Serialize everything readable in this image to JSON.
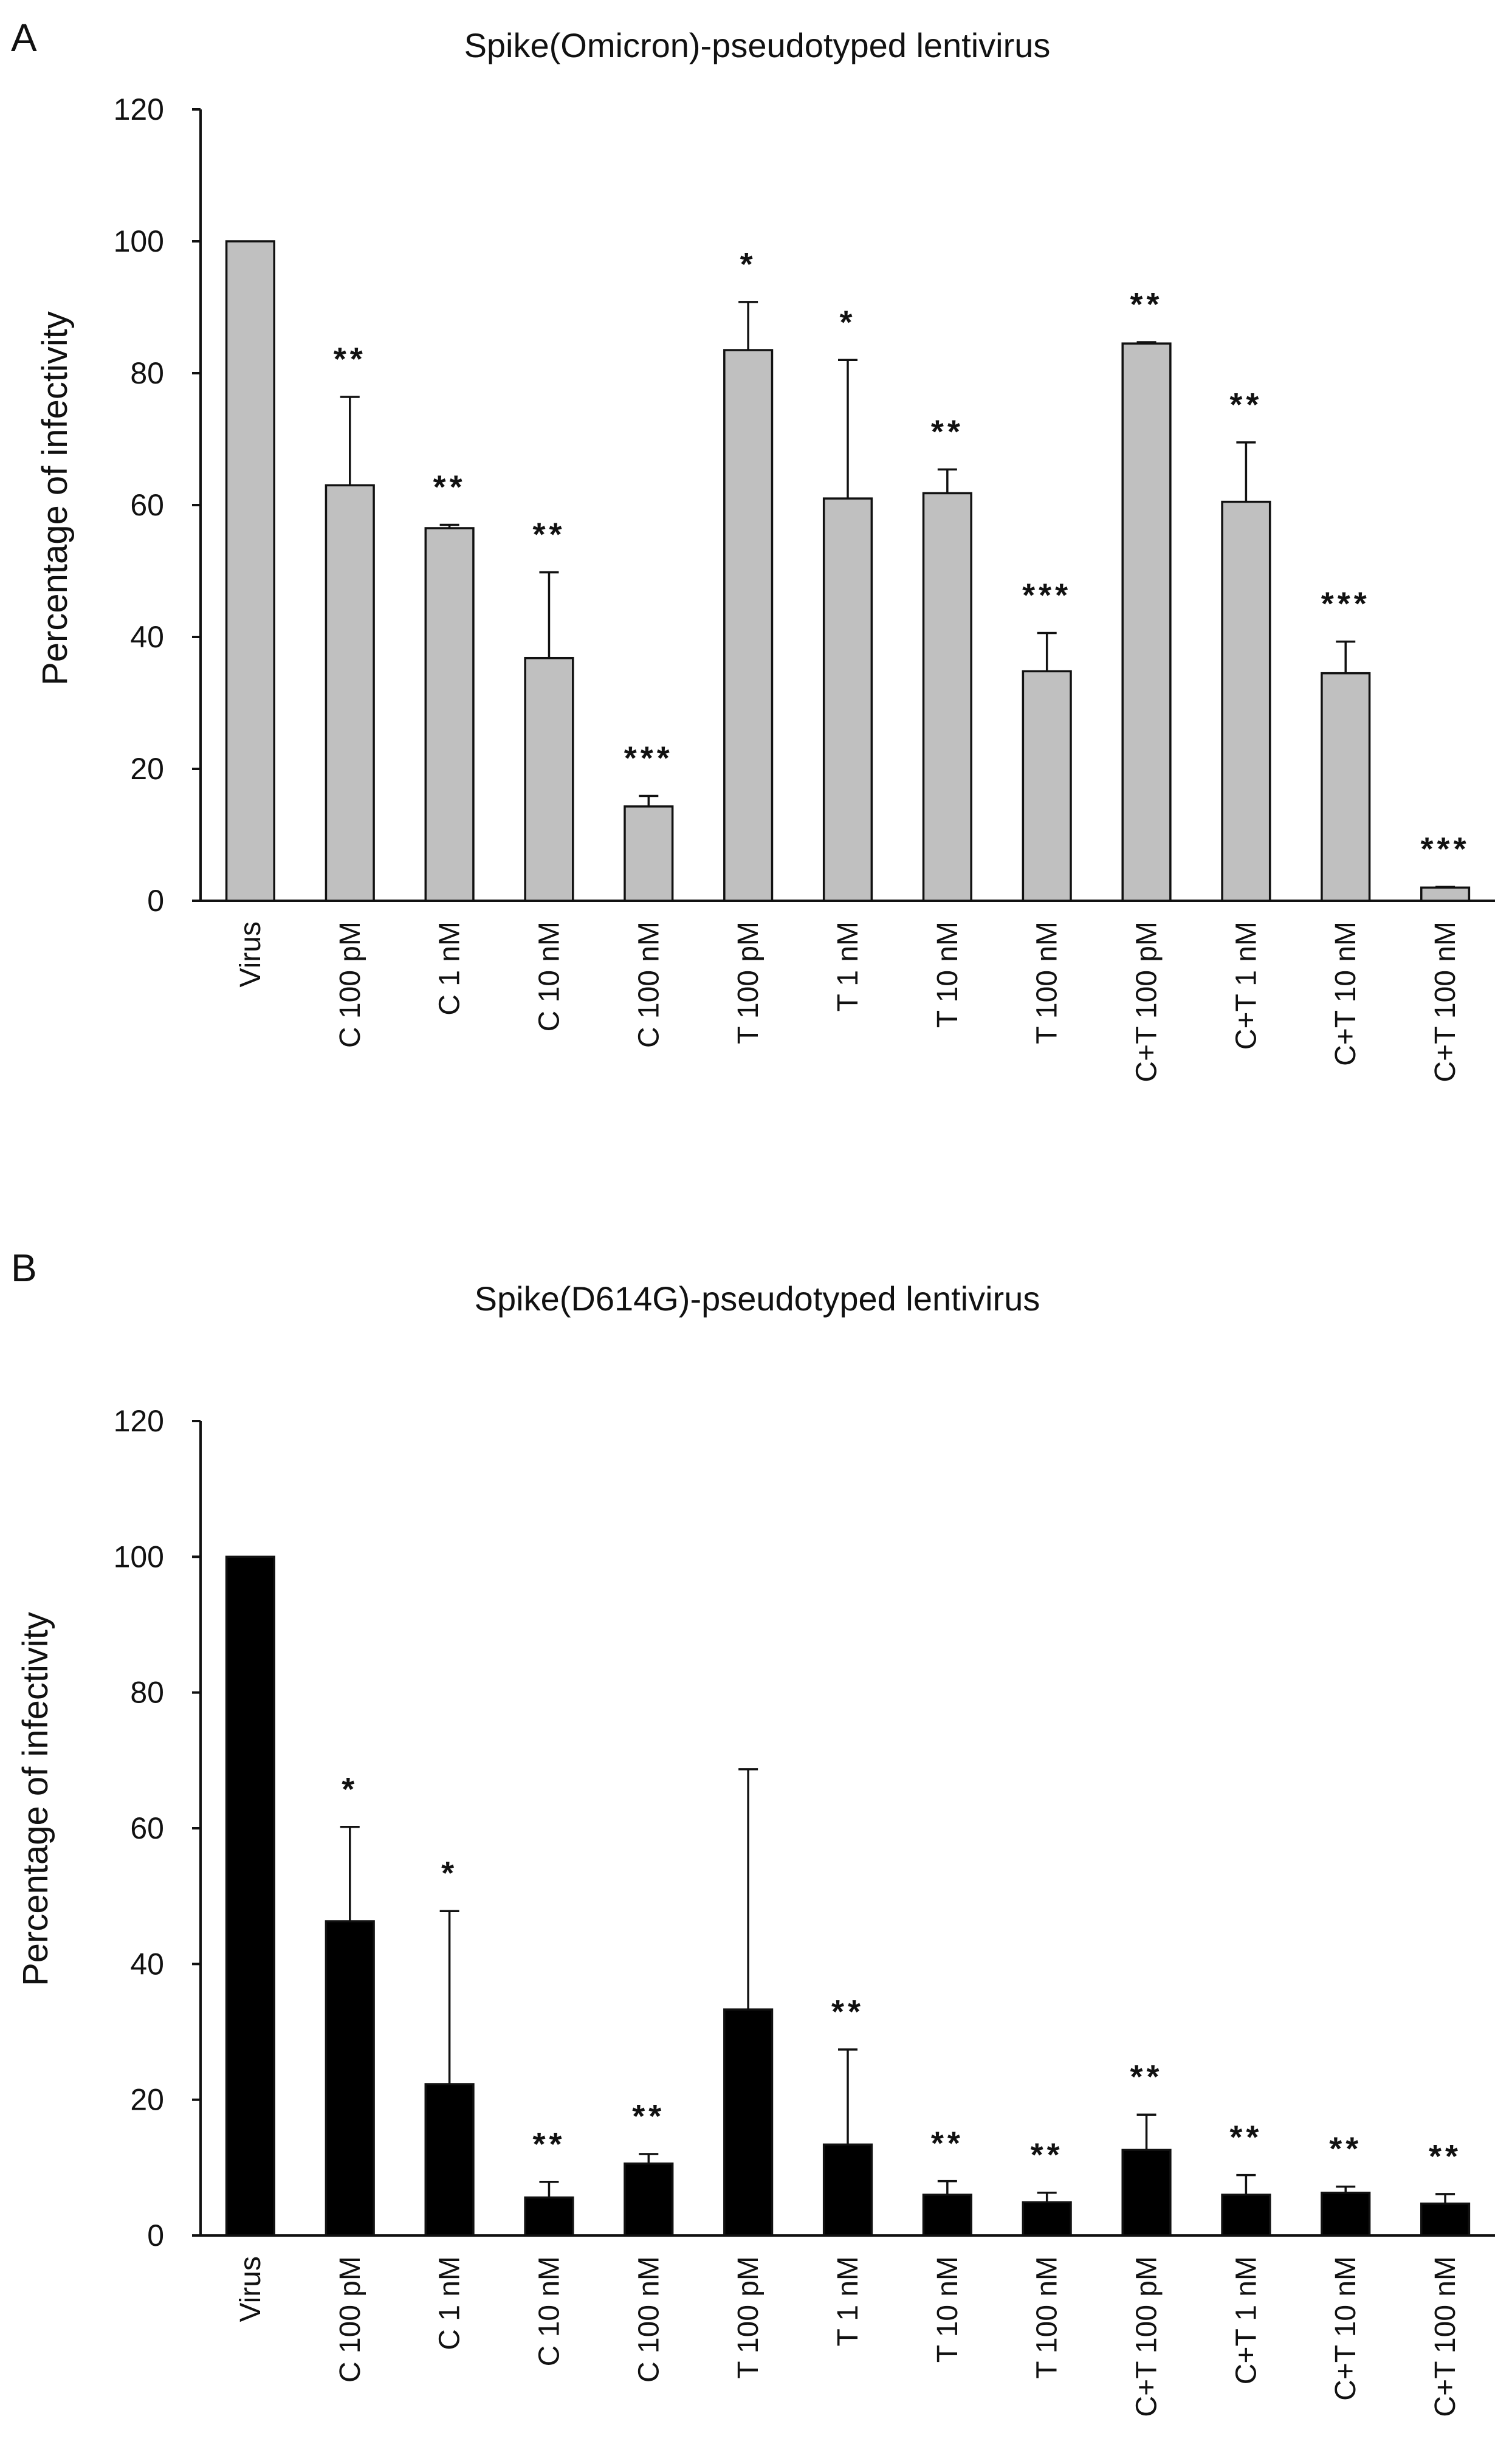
{
  "chart_data": [
    {
      "type": "bar",
      "panel_label": "A",
      "title": "Spike(Omicron)-pseudotyped lentivirus",
      "xlabel": "",
      "ylabel": "Percentage of infectivity",
      "ylim": [
        0,
        120
      ],
      "yticks": [
        "0",
        "20",
        "40",
        "60",
        "80",
        "100",
        "120"
      ],
      "grid": false,
      "legend": "none",
      "bar_color": "#c0c0c0",
      "categories": [
        "Virus",
        "C 100 pM",
        "C 1 nM",
        "C 10 nM",
        "C 100 nM",
        "T 100 pM",
        "T 1 nM",
        "T 10 nM",
        "T 100 nM",
        "C+T 100 pM",
        "C+T 1 nM",
        "C+T 10 nM",
        "C+T 100 nM"
      ],
      "values": [
        100,
        63,
        56.5,
        36.8,
        14.3,
        83.5,
        61,
        61.8,
        34.8,
        84.5,
        60.5,
        34.5,
        2
      ],
      "error": [
        0,
        13.4,
        0.5,
        13,
        1.6,
        7.3,
        21,
        3.6,
        5.8,
        0.2,
        9,
        4.8,
        0.1
      ],
      "significance": [
        "",
        "**",
        "**",
        "**",
        "***",
        "*",
        "*",
        "**",
        "***",
        "**",
        "**",
        "***",
        "***"
      ]
    },
    {
      "type": "bar",
      "panel_label": "B",
      "title": "Spike(D614G)-pseudotyped lentivirus",
      "xlabel": "",
      "ylabel": "Percentage of infectivity",
      "ylim": [
        0,
        120
      ],
      "yticks": [
        "0",
        "20",
        "40",
        "60",
        "80",
        "100",
        "120"
      ],
      "grid": false,
      "legend": "none",
      "bar_color": "#000000",
      "categories": [
        "Virus",
        "C 100 pM",
        "C 1 nM",
        "C 10 nM",
        "C 100 nM",
        "T 100 pM",
        "T 1 nM",
        "T 10 nM",
        "T 100 nM",
        "C+T 100 pM",
        "C+T 1 nM",
        "C+T 10 nM",
        "C+T 100 nM"
      ],
      "values": [
        100,
        46.3,
        22.3,
        5.6,
        10.6,
        33.3,
        13.4,
        6,
        4.9,
        12.6,
        6,
        6.3,
        4.7
      ],
      "error": [
        0,
        13.9,
        25.5,
        2.3,
        1.4,
        35.4,
        14,
        2,
        1.4,
        5.2,
        2.9,
        0.9,
        1.4
      ],
      "significance": [
        "",
        "*",
        "*",
        "**",
        "**",
        "",
        "**",
        "**",
        "**",
        "**",
        "**",
        "**",
        "**"
      ]
    }
  ]
}
